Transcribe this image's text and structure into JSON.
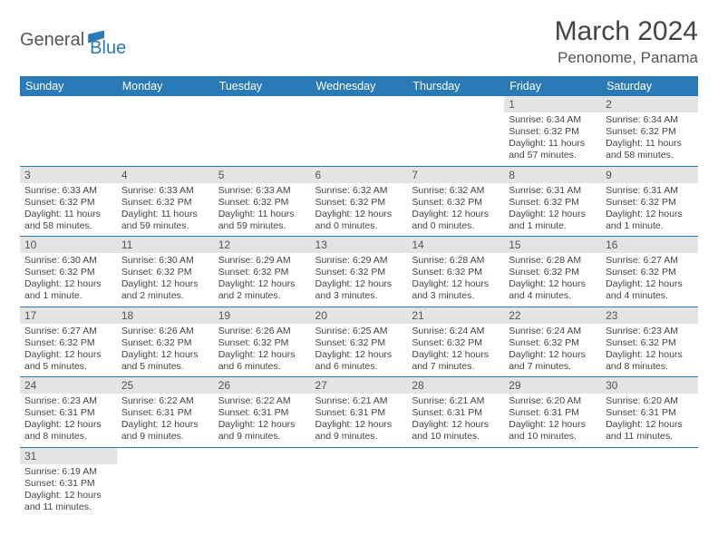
{
  "logo": {
    "part1": "General",
    "part2": "Blue"
  },
  "title": "March 2024",
  "location": "Penonome, Panama",
  "colors": {
    "header_bg": "#2a7ab8",
    "header_text": "#ffffff",
    "daynum_bg": "#e4e4e4",
    "row_border": "#2a7ab8",
    "text": "#444444"
  },
  "weekdays": [
    "Sunday",
    "Monday",
    "Tuesday",
    "Wednesday",
    "Thursday",
    "Friday",
    "Saturday"
  ],
  "weeks": [
    [
      null,
      null,
      null,
      null,
      null,
      {
        "n": "1",
        "sr": "Sunrise: 6:34 AM",
        "ss": "Sunset: 6:32 PM",
        "dl": "Daylight: 11 hours and 57 minutes."
      },
      {
        "n": "2",
        "sr": "Sunrise: 6:34 AM",
        "ss": "Sunset: 6:32 PM",
        "dl": "Daylight: 11 hours and 58 minutes."
      }
    ],
    [
      {
        "n": "3",
        "sr": "Sunrise: 6:33 AM",
        "ss": "Sunset: 6:32 PM",
        "dl": "Daylight: 11 hours and 58 minutes."
      },
      {
        "n": "4",
        "sr": "Sunrise: 6:33 AM",
        "ss": "Sunset: 6:32 PM",
        "dl": "Daylight: 11 hours and 59 minutes."
      },
      {
        "n": "5",
        "sr": "Sunrise: 6:33 AM",
        "ss": "Sunset: 6:32 PM",
        "dl": "Daylight: 11 hours and 59 minutes."
      },
      {
        "n": "6",
        "sr": "Sunrise: 6:32 AM",
        "ss": "Sunset: 6:32 PM",
        "dl": "Daylight: 12 hours and 0 minutes."
      },
      {
        "n": "7",
        "sr": "Sunrise: 6:32 AM",
        "ss": "Sunset: 6:32 PM",
        "dl": "Daylight: 12 hours and 0 minutes."
      },
      {
        "n": "8",
        "sr": "Sunrise: 6:31 AM",
        "ss": "Sunset: 6:32 PM",
        "dl": "Daylight: 12 hours and 1 minute."
      },
      {
        "n": "9",
        "sr": "Sunrise: 6:31 AM",
        "ss": "Sunset: 6:32 PM",
        "dl": "Daylight: 12 hours and 1 minute."
      }
    ],
    [
      {
        "n": "10",
        "sr": "Sunrise: 6:30 AM",
        "ss": "Sunset: 6:32 PM",
        "dl": "Daylight: 12 hours and 1 minute."
      },
      {
        "n": "11",
        "sr": "Sunrise: 6:30 AM",
        "ss": "Sunset: 6:32 PM",
        "dl": "Daylight: 12 hours and 2 minutes."
      },
      {
        "n": "12",
        "sr": "Sunrise: 6:29 AM",
        "ss": "Sunset: 6:32 PM",
        "dl": "Daylight: 12 hours and 2 minutes."
      },
      {
        "n": "13",
        "sr": "Sunrise: 6:29 AM",
        "ss": "Sunset: 6:32 PM",
        "dl": "Daylight: 12 hours and 3 minutes."
      },
      {
        "n": "14",
        "sr": "Sunrise: 6:28 AM",
        "ss": "Sunset: 6:32 PM",
        "dl": "Daylight: 12 hours and 3 minutes."
      },
      {
        "n": "15",
        "sr": "Sunrise: 6:28 AM",
        "ss": "Sunset: 6:32 PM",
        "dl": "Daylight: 12 hours and 4 minutes."
      },
      {
        "n": "16",
        "sr": "Sunrise: 6:27 AM",
        "ss": "Sunset: 6:32 PM",
        "dl": "Daylight: 12 hours and 4 minutes."
      }
    ],
    [
      {
        "n": "17",
        "sr": "Sunrise: 6:27 AM",
        "ss": "Sunset: 6:32 PM",
        "dl": "Daylight: 12 hours and 5 minutes."
      },
      {
        "n": "18",
        "sr": "Sunrise: 6:26 AM",
        "ss": "Sunset: 6:32 PM",
        "dl": "Daylight: 12 hours and 5 minutes."
      },
      {
        "n": "19",
        "sr": "Sunrise: 6:26 AM",
        "ss": "Sunset: 6:32 PM",
        "dl": "Daylight: 12 hours and 6 minutes."
      },
      {
        "n": "20",
        "sr": "Sunrise: 6:25 AM",
        "ss": "Sunset: 6:32 PM",
        "dl": "Daylight: 12 hours and 6 minutes."
      },
      {
        "n": "21",
        "sr": "Sunrise: 6:24 AM",
        "ss": "Sunset: 6:32 PM",
        "dl": "Daylight: 12 hours and 7 minutes."
      },
      {
        "n": "22",
        "sr": "Sunrise: 6:24 AM",
        "ss": "Sunset: 6:32 PM",
        "dl": "Daylight: 12 hours and 7 minutes."
      },
      {
        "n": "23",
        "sr": "Sunrise: 6:23 AM",
        "ss": "Sunset: 6:32 PM",
        "dl": "Daylight: 12 hours and 8 minutes."
      }
    ],
    [
      {
        "n": "24",
        "sr": "Sunrise: 6:23 AM",
        "ss": "Sunset: 6:31 PM",
        "dl": "Daylight: 12 hours and 8 minutes."
      },
      {
        "n": "25",
        "sr": "Sunrise: 6:22 AM",
        "ss": "Sunset: 6:31 PM",
        "dl": "Daylight: 12 hours and 9 minutes."
      },
      {
        "n": "26",
        "sr": "Sunrise: 6:22 AM",
        "ss": "Sunset: 6:31 PM",
        "dl": "Daylight: 12 hours and 9 minutes."
      },
      {
        "n": "27",
        "sr": "Sunrise: 6:21 AM",
        "ss": "Sunset: 6:31 PM",
        "dl": "Daylight: 12 hours and 9 minutes."
      },
      {
        "n": "28",
        "sr": "Sunrise: 6:21 AM",
        "ss": "Sunset: 6:31 PM",
        "dl": "Daylight: 12 hours and 10 minutes."
      },
      {
        "n": "29",
        "sr": "Sunrise: 6:20 AM",
        "ss": "Sunset: 6:31 PM",
        "dl": "Daylight: 12 hours and 10 minutes."
      },
      {
        "n": "30",
        "sr": "Sunrise: 6:20 AM",
        "ss": "Sunset: 6:31 PM",
        "dl": "Daylight: 12 hours and 11 minutes."
      }
    ],
    [
      {
        "n": "31",
        "sr": "Sunrise: 6:19 AM",
        "ss": "Sunset: 6:31 PM",
        "dl": "Daylight: 12 hours and 11 minutes."
      },
      null,
      null,
      null,
      null,
      null,
      null
    ]
  ]
}
